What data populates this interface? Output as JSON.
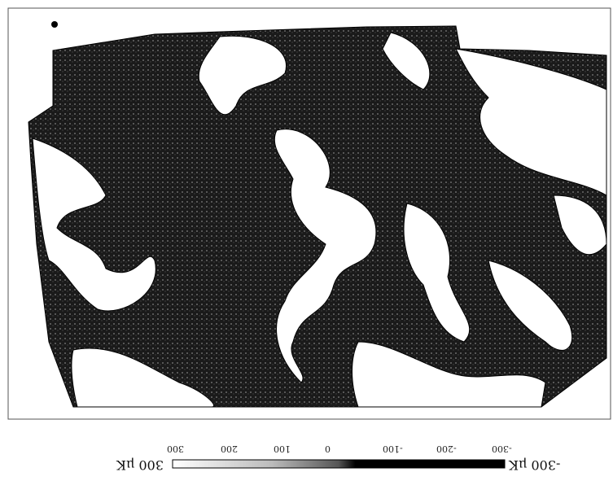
{
  "figure": {
    "orientation": "rotated 180 degrees",
    "colorbar": {
      "min_label": "-300 μK",
      "max_label": "300 μK",
      "ticks": [
        "-300",
        "-200",
        "-100",
        "0",
        "100",
        "200",
        "300"
      ],
      "range": [
        -300,
        300
      ],
      "colors": {
        "low": "#000000",
        "high": "#ffffff"
      }
    }
  }
}
